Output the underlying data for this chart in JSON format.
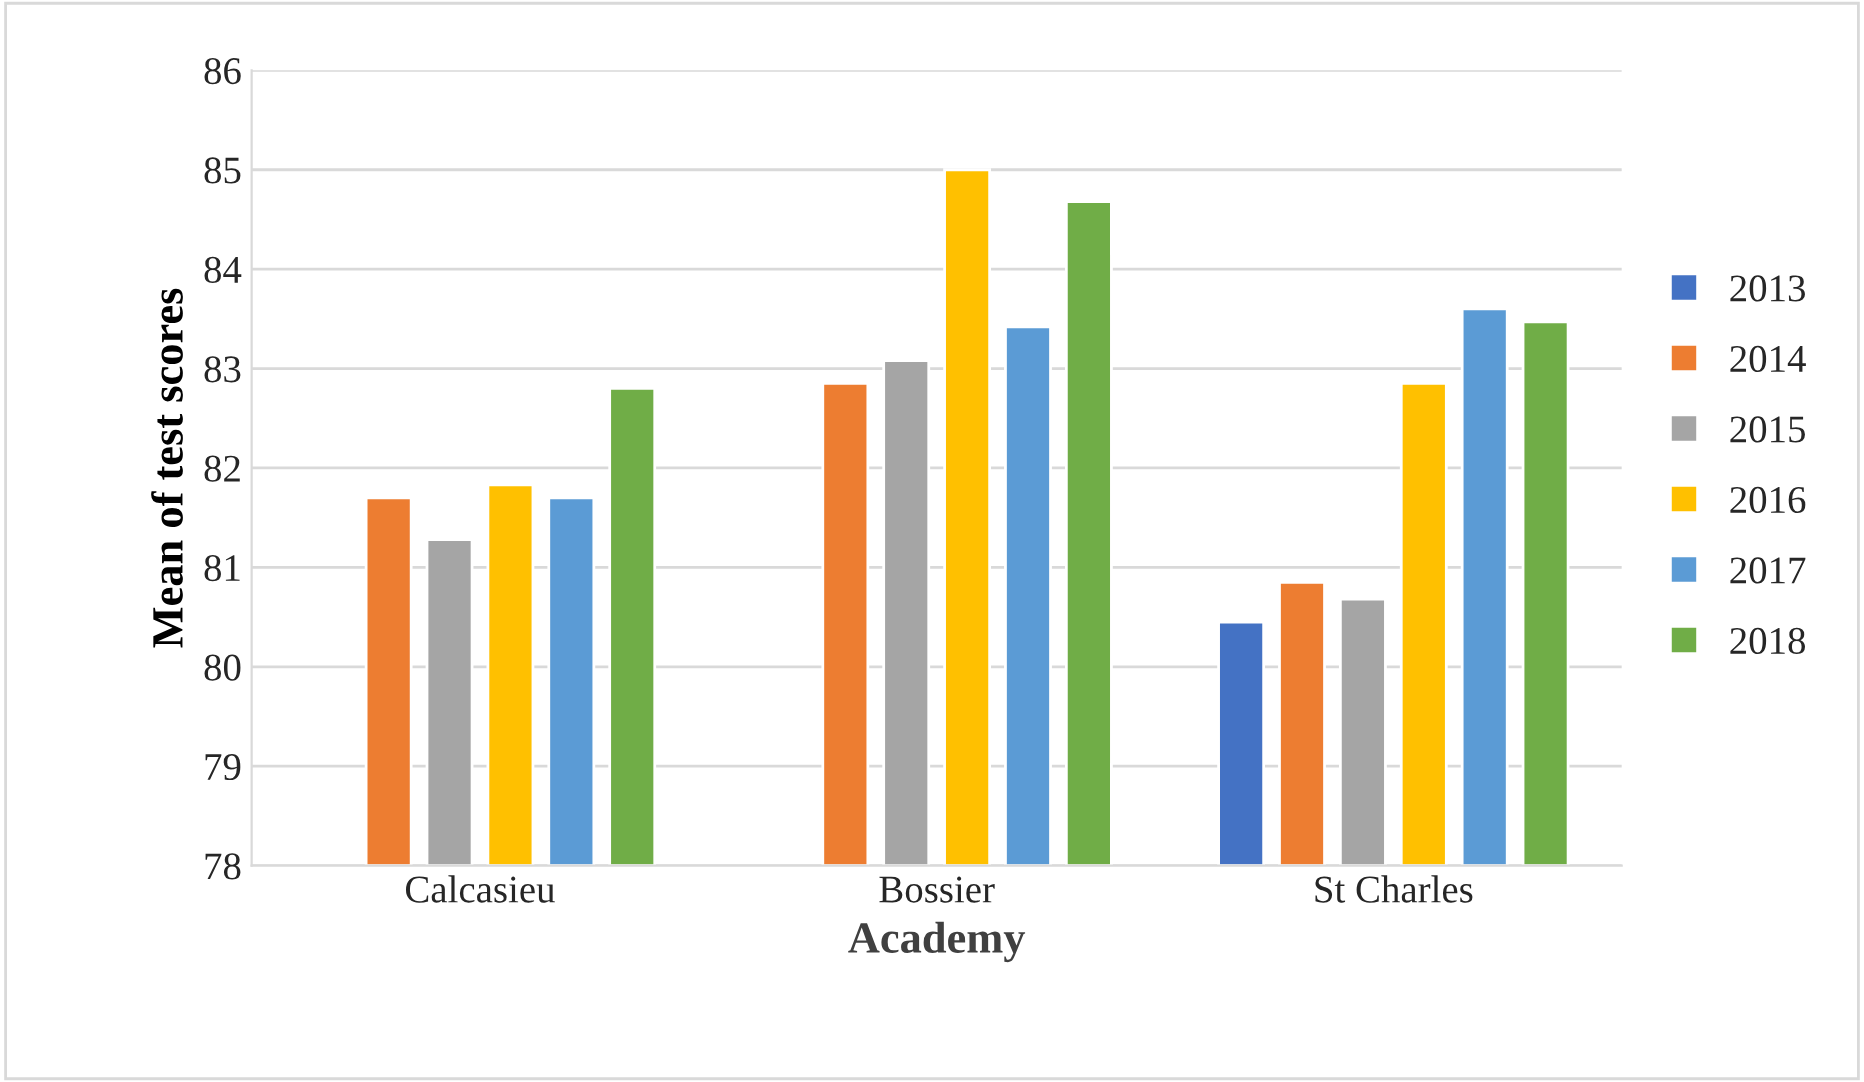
{
  "chart_data": {
    "type": "bar",
    "xlabel": "Academy",
    "ylabel": "Mean of test scores",
    "categories": [
      "Calcasieu",
      "Bossier",
      "St Charles"
    ],
    "series": [
      {
        "name": "2013",
        "color": "#4472c4",
        "values": [
          null,
          null,
          80.45
        ]
      },
      {
        "name": "2014",
        "color": "#ed7d31",
        "values": [
          81.7,
          82.85,
          80.85
        ]
      },
      {
        "name": "2015",
        "color": "#a5a5a5",
        "values": [
          81.28,
          83.08,
          80.68
        ]
      },
      {
        "name": "2016",
        "color": "#ffc000",
        "values": [
          81.83,
          85.0,
          82.85
        ]
      },
      {
        "name": "2017",
        "color": "#5b9bd5",
        "values": [
          81.7,
          83.42,
          83.6
        ]
      },
      {
        "name": "2018",
        "color": "#70ad47",
        "values": [
          82.8,
          84.68,
          83.47
        ]
      }
    ],
    "ylim": [
      78,
      86
    ],
    "yticks": [
      78,
      79,
      80,
      81,
      82,
      83,
      84,
      85,
      86
    ],
    "grid": "y",
    "legend": "right"
  }
}
